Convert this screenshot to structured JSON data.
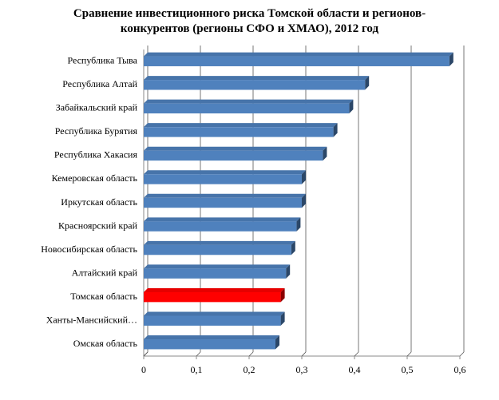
{
  "chart_data": {
    "type": "hbar",
    "title": "Сравнение инвестиционного риска Томской области и регионов-конкурентов (регионы СФО и ХМАО), 2012 год",
    "categories": [
      "Республика Тыва",
      "Республика Алтай",
      "Забайкальский край",
      "Республика Бурятия",
      "Республика Хакасия",
      "Кемеровская область",
      "Иркутская область",
      "Красноярский край",
      "Новосибирская область",
      "Алтайский край",
      "Томская область",
      "Ханты-Мансийский…",
      "Омская область"
    ],
    "values": [
      0.58,
      0.42,
      0.39,
      0.36,
      0.34,
      0.3,
      0.3,
      0.29,
      0.28,
      0.27,
      0.26,
      0.26,
      0.25
    ],
    "colors": [
      "#4f81bd",
      "#4f81bd",
      "#4f81bd",
      "#4f81bd",
      "#4f81bd",
      "#4f81bd",
      "#4f81bd",
      "#4f81bd",
      "#4f81bd",
      "#4f81bd",
      "#ff0000",
      "#4f81bd",
      "#4f81bd"
    ],
    "xlim": [
      0,
      0.6
    ],
    "xticks": [
      0,
      {
        "value": 0.1,
        "label": "0,1"
      },
      {
        "value": 0.2,
        "label": "0,2"
      },
      {
        "value": 0.3,
        "label": "0,3"
      },
      {
        "value": 0.4,
        "label": "0,4"
      },
      {
        "value": 0.5,
        "label": "0,5"
      },
      {
        "value": 0.6,
        "label": "0,6"
      }
    ],
    "grid": true
  }
}
